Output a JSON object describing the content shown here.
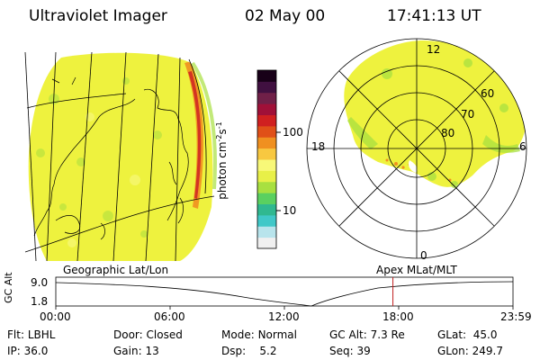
{
  "header": {
    "instrument": "Ultraviolet Imager",
    "date": "02 May 00",
    "time": "17:41:13 UT"
  },
  "colorbar": {
    "label": "photon cm",
    "label_sup1": "-2",
    "label_mid": "s",
    "label_sup2": "-1",
    "tick_100": "100",
    "tick_10": "10",
    "colors": [
      "#f0f0f0",
      "#b8e4ec",
      "#40c8c8",
      "#30b890",
      "#5ad060",
      "#a8e040",
      "#e8f048",
      "#f8f878",
      "#f8c840",
      "#f09020",
      "#e05018",
      "#d02020",
      "#a01038",
      "#702048",
      "#401040",
      "#180018"
    ]
  },
  "left_panel": {
    "caption": "Geographic Lat/Lon",
    "fill_color": "#eef23e"
  },
  "right_panel": {
    "caption": "Apex MLat/MLT",
    "labels": {
      "top": "12",
      "left": "18",
      "right": "6",
      "bottom": "0",
      "r60": "60",
      "r70": "70",
      "r80": "80"
    }
  },
  "timeline": {
    "axis_label": "GC Alt",
    "y_max": "9.0",
    "y_min": "1.8",
    "ticks": [
      "00:00",
      "06:00",
      "12:00",
      "18:00",
      "23:59"
    ],
    "current_time": "17:41"
  },
  "footer": {
    "row1": [
      {
        "label": "Flt:",
        "value": "LBHL"
      },
      {
        "label": "Door:",
        "value": "Closed"
      },
      {
        "label": "Mode:",
        "value": "Normal"
      },
      {
        "label": "GC Alt:",
        "value": "7.3 Re"
      },
      {
        "label": "GLat:",
        "value": "45.0"
      }
    ],
    "row2": [
      {
        "label": "IP:",
        "value": "36.0"
      },
      {
        "label": "Gain:",
        "value": "13"
      },
      {
        "label": "Dsp:",
        "value": "5.2"
      },
      {
        "label": "Seq:",
        "value": "39"
      },
      {
        "label": "GLon:",
        "value": "249.7"
      }
    ]
  }
}
